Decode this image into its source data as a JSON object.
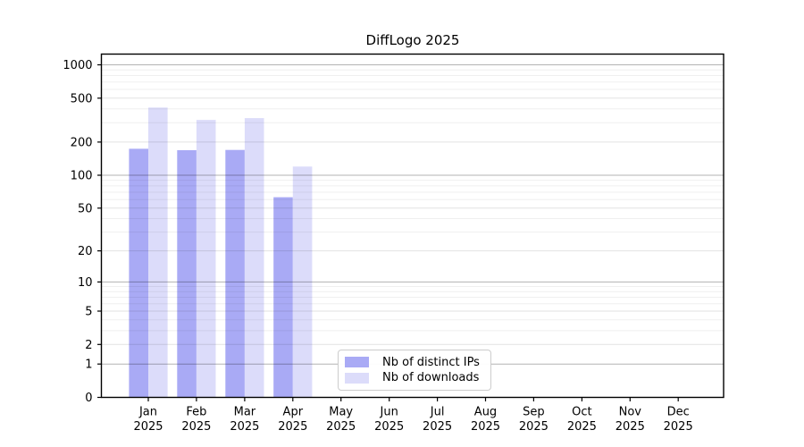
{
  "chart_data": {
    "type": "bar",
    "title": "DiffLogo 2025",
    "subtitle": "",
    "xlabel": "",
    "ylabel": "",
    "y_scale": "log10(1+x)",
    "ylim": [
      0,
      1250
    ],
    "grid": true,
    "legend_position": "inside-bottom-center-left",
    "categories": [
      "Jan",
      "Feb",
      "Mar",
      "Apr",
      "May",
      "Jun",
      "Jul",
      "Aug",
      "Sep",
      "Oct",
      "Nov",
      "Dec"
    ],
    "category_year": "2025",
    "y_ticks": [
      0,
      1,
      2,
      5,
      10,
      20,
      50,
      100,
      200,
      500,
      1000
    ],
    "y_minor_ticks": [
      3,
      4,
      6,
      7,
      8,
      9,
      30,
      40,
      60,
      70,
      80,
      90,
      300,
      400,
      600,
      700,
      800,
      900
    ],
    "series": [
      {
        "name": "Nb of distinct IPs",
        "color": "#a9aaf5",
        "values": [
          174,
          169,
          170,
          63,
          null,
          null,
          null,
          null,
          null,
          null,
          null,
          null
        ]
      },
      {
        "name": "Nb of downloads",
        "color": "#dcdcfa",
        "values": [
          411,
          318,
          330,
          120,
          null,
          null,
          null,
          null,
          null,
          null,
          null,
          null
        ]
      }
    ],
    "colors": {
      "background": "#ffffff",
      "axis": "#000000",
      "decade_gridline": "#b3b3b3",
      "major_gridline": "#e2e2e2",
      "minor_gridline": "#efefef",
      "legend_border": "#cccccc",
      "tick_label": "#000000"
    }
  }
}
